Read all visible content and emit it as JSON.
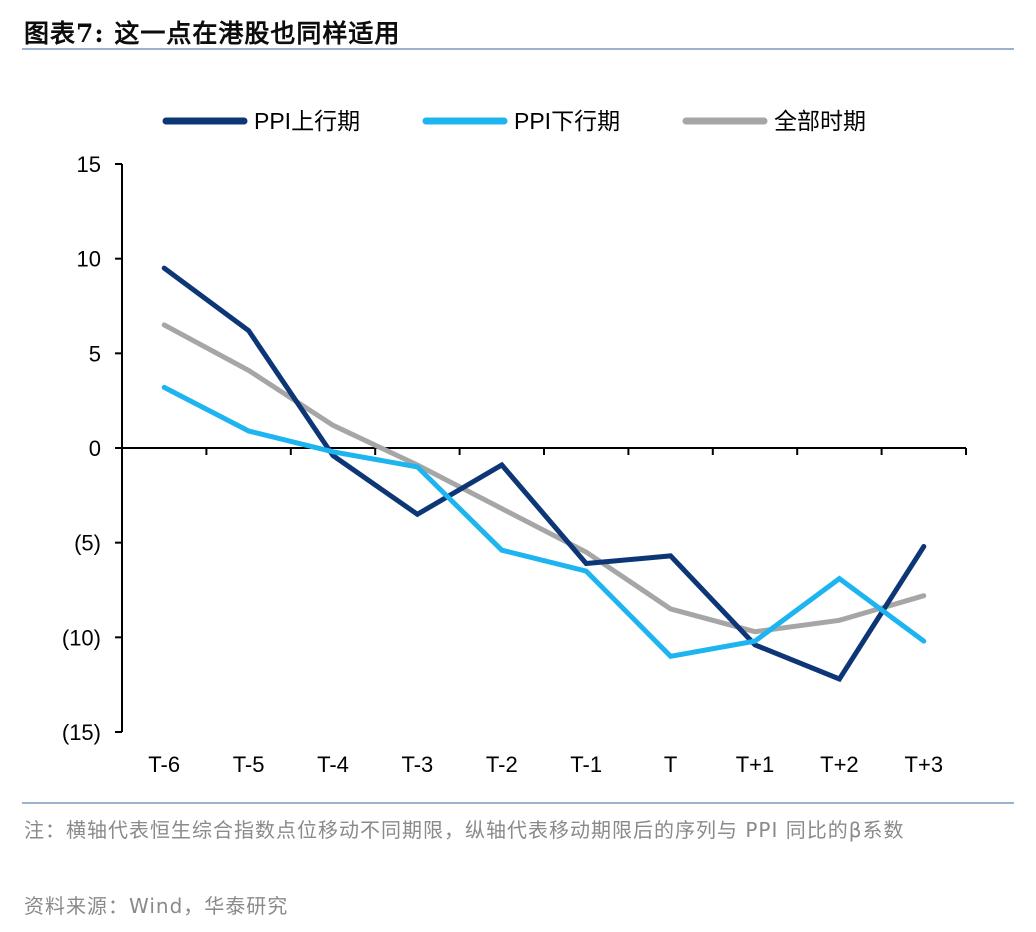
{
  "header": {
    "title": "图表7:  这一点在港股也同样适用"
  },
  "chart_data": {
    "type": "line",
    "categories": [
      "T-6",
      "T-5",
      "T-4",
      "T-3",
      "T-2",
      "T-1",
      "T",
      "T+1",
      "T+2",
      "T+3"
    ],
    "y_ticks": [
      15,
      10,
      5,
      0,
      -5,
      -10,
      -15
    ],
    "y_tick_labels": [
      "15",
      "10",
      "5",
      "0",
      "(5)",
      "(10)",
      "(15)"
    ],
    "ylim": [
      -15,
      15
    ],
    "legend_position": "top",
    "series": [
      {
        "name": "PPI上行期",
        "color": "#0d3677",
        "values": [
          9.5,
          6.2,
          -0.4,
          -3.5,
          -0.9,
          -6.1,
          -5.7,
          -10.4,
          -12.2,
          -5.2
        ]
      },
      {
        "name": "PPI下行期",
        "color": "#1eb4f0",
        "values": [
          3.2,
          0.9,
          -0.2,
          -1.0,
          -5.4,
          -6.5,
          -11.0,
          -10.2,
          -6.9,
          -10.2
        ]
      },
      {
        "name": "全部时期",
        "color": "#a6a6a6",
        "values": [
          6.5,
          4.1,
          1.2,
          -0.9,
          -3.2,
          -5.5,
          -8.5,
          -9.7,
          -9.1,
          -7.8
        ]
      }
    ]
  },
  "footer": {
    "note": "注：横轴代表恒生综合指数点位移动不同期限，纵轴代表移动期限后的序列与 PPI 同比的β系数",
    "source": "资料来源：Wind，华泰研究"
  }
}
